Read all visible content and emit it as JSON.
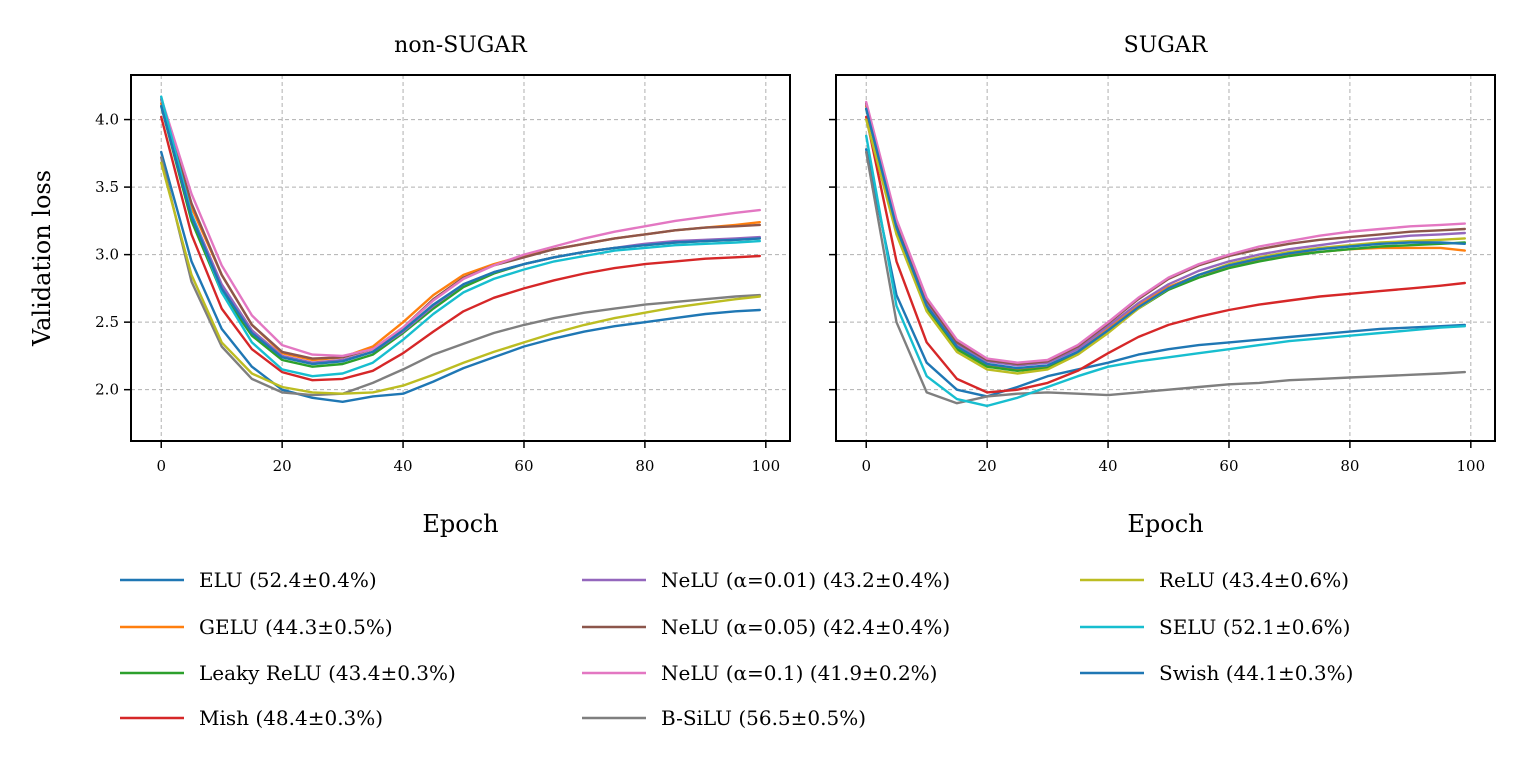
{
  "chart_data": [
    {
      "type": "line",
      "title": "non-SUGAR",
      "xlabel": "Epoch",
      "ylabel": "Validation loss",
      "xlim": [
        -5,
        104
      ],
      "ylim": [
        1.62,
        4.33
      ],
      "xticks": [
        "0",
        "20",
        "40",
        "60",
        "80",
        "100"
      ],
      "yticks": [
        "2.0",
        "2.5",
        "3.0",
        "3.5",
        "4.0"
      ],
      "grid": true,
      "x": [
        0,
        5,
        10,
        15,
        20,
        25,
        30,
        35,
        40,
        45,
        50,
        55,
        60,
        65,
        70,
        75,
        80,
        85,
        90,
        95,
        99
      ],
      "series": [
        {
          "name": "ELU (52.4±0.4%)",
          "color": "#1f77b4",
          "values": [
            3.76,
            2.95,
            2.45,
            2.17,
            2.0,
            1.94,
            1.91,
            1.95,
            1.97,
            2.06,
            2.16,
            2.24,
            2.32,
            2.38,
            2.43,
            2.47,
            2.5,
            2.53,
            2.56,
            2.58,
            2.59
          ]
        },
        {
          "name": "GELU (44.3±0.5%)",
          "color": "#ff7f0e",
          "values": [
            4.12,
            3.35,
            2.85,
            2.48,
            2.27,
            2.22,
            2.24,
            2.32,
            2.5,
            2.7,
            2.85,
            2.93,
            2.99,
            3.04,
            3.08,
            3.12,
            3.15,
            3.18,
            3.2,
            3.22,
            3.24
          ]
        },
        {
          "name": "Leaky ReLU (43.4±0.3%)",
          "color": "#2ca02c",
          "values": [
            4.1,
            3.25,
            2.72,
            2.4,
            2.22,
            2.17,
            2.19,
            2.26,
            2.42,
            2.6,
            2.76,
            2.86,
            2.93,
            2.98,
            3.02,
            3.05,
            3.07,
            3.09,
            3.1,
            3.11,
            3.12
          ]
        },
        {
          "name": "Mish (48.4±0.3%)",
          "color": "#d62728",
          "values": [
            4.02,
            3.15,
            2.6,
            2.3,
            2.13,
            2.07,
            2.08,
            2.14,
            2.27,
            2.43,
            2.58,
            2.68,
            2.75,
            2.81,
            2.86,
            2.9,
            2.93,
            2.95,
            2.97,
            2.98,
            2.99
          ]
        },
        {
          "name": "NeLU (α=0.01) (43.2±0.4%)",
          "color": "#9467bd",
          "values": [
            4.15,
            3.3,
            2.78,
            2.44,
            2.25,
            2.2,
            2.22,
            2.28,
            2.43,
            2.62,
            2.78,
            2.87,
            2.93,
            2.98,
            3.02,
            3.05,
            3.08,
            3.1,
            3.11,
            3.12,
            3.13
          ]
        },
        {
          "name": "NeLU (α=0.05) (42.4±0.4%)",
          "color": "#8c564b",
          "values": [
            4.15,
            3.38,
            2.85,
            2.48,
            2.28,
            2.23,
            2.24,
            2.3,
            2.46,
            2.67,
            2.83,
            2.92,
            2.98,
            3.04,
            3.08,
            3.12,
            3.15,
            3.18,
            3.2,
            3.21,
            3.22
          ]
        },
        {
          "name": "NeLU (α=0.1) (41.9±0.2%)",
          "color": "#e377c2",
          "values": [
            4.16,
            3.45,
            2.92,
            2.55,
            2.33,
            2.26,
            2.25,
            2.3,
            2.46,
            2.66,
            2.82,
            2.92,
            3.0,
            3.06,
            3.12,
            3.17,
            3.21,
            3.25,
            3.28,
            3.31,
            3.33
          ]
        },
        {
          "name": "B-SiLU (56.5±0.5%)",
          "color": "#7f7f7f",
          "values": [
            3.72,
            2.8,
            2.32,
            2.08,
            1.98,
            1.96,
            1.97,
            2.05,
            2.15,
            2.26,
            2.34,
            2.42,
            2.48,
            2.53,
            2.57,
            2.6,
            2.63,
            2.65,
            2.67,
            2.69,
            2.7
          ]
        },
        {
          "name": "ReLU (43.4±0.6%)",
          "color": "#bcbd22",
          "values": [
            3.68,
            2.85,
            2.35,
            2.12,
            2.02,
            1.98,
            1.97,
            1.98,
            2.03,
            2.11,
            2.2,
            2.28,
            2.35,
            2.42,
            2.48,
            2.53,
            2.57,
            2.61,
            2.64,
            2.67,
            2.69
          ]
        },
        {
          "name": "SELU (52.1±0.6%)",
          "color": "#17becf",
          "values": [
            4.17,
            3.3,
            2.72,
            2.35,
            2.15,
            2.1,
            2.12,
            2.2,
            2.37,
            2.56,
            2.72,
            2.82,
            2.89,
            2.95,
            2.99,
            3.03,
            3.05,
            3.07,
            3.08,
            3.09,
            3.1
          ]
        },
        {
          "name": "Swish (44.1±0.3%)",
          "color": "#1f77b4",
          "values": [
            4.1,
            3.28,
            2.75,
            2.42,
            2.24,
            2.19,
            2.21,
            2.28,
            2.44,
            2.63,
            2.78,
            2.87,
            2.93,
            2.98,
            3.02,
            3.05,
            3.07,
            3.09,
            3.1,
            3.11,
            3.12
          ]
        }
      ]
    },
    {
      "type": "line",
      "title": "SUGAR",
      "xlabel": "Epoch",
      "ylabel": "",
      "xlim": [
        -5,
        104
      ],
      "ylim": [
        1.62,
        4.33
      ],
      "xticks": [
        "0",
        "20",
        "40",
        "60",
        "80",
        "100"
      ],
      "yticks": [
        "",
        "",
        "",
        "",
        ""
      ],
      "grid": true,
      "x": [
        0,
        5,
        10,
        15,
        20,
        25,
        30,
        35,
        40,
        45,
        50,
        55,
        60,
        65,
        70,
        75,
        80,
        85,
        90,
        95,
        99
      ],
      "series": [
        {
          "name": "ELU (52.4±0.4%)",
          "color": "#1f77b4",
          "values": [
            3.78,
            2.7,
            2.2,
            2.0,
            1.95,
            2.02,
            2.1,
            2.15,
            2.2,
            2.26,
            2.3,
            2.33,
            2.35,
            2.37,
            2.39,
            2.41,
            2.43,
            2.45,
            2.46,
            2.47,
            2.48
          ]
        },
        {
          "name": "GELU (44.3±0.5%)",
          "color": "#ff7f0e",
          "values": [
            4.1,
            3.2,
            2.6,
            2.3,
            2.18,
            2.15,
            2.17,
            2.28,
            2.45,
            2.62,
            2.76,
            2.85,
            2.91,
            2.96,
            3.0,
            3.02,
            3.04,
            3.05,
            3.05,
            3.05,
            3.03
          ]
        },
        {
          "name": "Leaky ReLU (43.4±0.3%)",
          "color": "#2ca02c",
          "values": [
            4.08,
            3.18,
            2.6,
            2.3,
            2.17,
            2.14,
            2.16,
            2.27,
            2.43,
            2.6,
            2.74,
            2.83,
            2.9,
            2.95,
            2.99,
            3.02,
            3.04,
            3.06,
            3.07,
            3.08,
            3.09
          ]
        },
        {
          "name": "Mish (48.4±0.3%)",
          "color": "#d62728",
          "values": [
            4.02,
            2.95,
            2.35,
            2.08,
            1.98,
            2.0,
            2.05,
            2.14,
            2.27,
            2.39,
            2.48,
            2.54,
            2.59,
            2.63,
            2.66,
            2.69,
            2.71,
            2.73,
            2.75,
            2.77,
            2.79
          ]
        },
        {
          "name": "NeLU (α=0.01) (43.2±0.4%)",
          "color": "#9467bd",
          "values": [
            4.12,
            3.22,
            2.64,
            2.34,
            2.21,
            2.18,
            2.2,
            2.3,
            2.47,
            2.64,
            2.78,
            2.88,
            2.95,
            3.0,
            3.04,
            3.07,
            3.1,
            3.12,
            3.14,
            3.15,
            3.16
          ]
        },
        {
          "name": "NeLU (α=0.05) (42.4±0.4%)",
          "color": "#8c564b",
          "values": [
            4.12,
            3.24,
            2.66,
            2.35,
            2.22,
            2.19,
            2.21,
            2.32,
            2.49,
            2.67,
            2.82,
            2.92,
            2.99,
            3.04,
            3.08,
            3.11,
            3.13,
            3.15,
            3.17,
            3.18,
            3.19
          ]
        },
        {
          "name": "NeLU (α=0.1) (41.9±0.2%)",
          "color": "#e377c2",
          "values": [
            4.13,
            3.26,
            2.68,
            2.37,
            2.23,
            2.2,
            2.22,
            2.33,
            2.5,
            2.68,
            2.83,
            2.93,
            3.0,
            3.06,
            3.1,
            3.14,
            3.17,
            3.19,
            3.21,
            3.22,
            3.23
          ]
        },
        {
          "name": "B-SiLU (56.5±0.5%)",
          "color": "#7f7f7f",
          "values": [
            3.76,
            2.5,
            1.98,
            1.9,
            1.95,
            1.97,
            1.98,
            1.97,
            1.96,
            1.98,
            2.0,
            2.02,
            2.04,
            2.05,
            2.07,
            2.08,
            2.09,
            2.1,
            2.11,
            2.12,
            2.13
          ]
        },
        {
          "name": "ReLU (43.4±0.6%)",
          "color": "#bcbd22",
          "values": [
            4.0,
            3.15,
            2.58,
            2.28,
            2.15,
            2.12,
            2.15,
            2.26,
            2.42,
            2.6,
            2.75,
            2.85,
            2.93,
            2.98,
            3.02,
            3.05,
            3.07,
            3.09,
            3.1,
            3.11,
            3.12
          ]
        },
        {
          "name": "SELU (52.1±0.6%)",
          "color": "#17becf",
          "values": [
            3.88,
            2.62,
            2.1,
            1.93,
            1.88,
            1.94,
            2.02,
            2.1,
            2.17,
            2.21,
            2.24,
            2.27,
            2.3,
            2.33,
            2.36,
            2.38,
            2.4,
            2.42,
            2.44,
            2.46,
            2.47
          ]
        },
        {
          "name": "Swish (44.1±0.3%)",
          "color": "#1f77b4",
          "values": [
            4.08,
            3.2,
            2.62,
            2.32,
            2.19,
            2.16,
            2.18,
            2.28,
            2.44,
            2.61,
            2.75,
            2.85,
            2.92,
            2.97,
            3.01,
            3.04,
            3.06,
            3.08,
            3.09,
            3.09,
            3.08
          ]
        }
      ]
    }
  ]
}
